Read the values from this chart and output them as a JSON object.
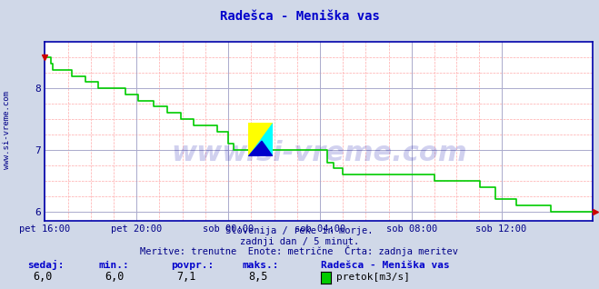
{
  "title": "Radešca - Meniška vas",
  "title_color": "#0000cc",
  "bg_color": "#d0d8e8",
  "plot_bg_color": "#ffffff",
  "grid_color_major": "#aaaacc",
  "grid_color_minor": "#ffaaaa",
  "line_color": "#00cc00",
  "line_width": 1.2,
  "ylim": [
    5.85,
    8.75
  ],
  "yticks": [
    6,
    7,
    8
  ],
  "tick_color": "#000088",
  "watermark": "www.si-vreme.com",
  "watermark_color": "#0000aa",
  "left_label": "www.si-vreme.com",
  "subtitle1": "Slovenija / reke in morje.",
  "subtitle2": "zadnji dan / 5 minut.",
  "subtitle3": "Meritve: trenutne  Enote: metrične  Črta: zadnja meritev",
  "subtitle_color": "#000088",
  "footer_labels": [
    "sedaj:",
    "min.:",
    "povpr.:",
    "maks.:"
  ],
  "footer_values": [
    "6,0",
    "6,0",
    "7,1",
    "8,5"
  ],
  "footer_label_color": "#0000cc",
  "footer_value_color": "#000000",
  "legend_label": "pretok[m3/s]",
  "legend_color": "#00cc00",
  "station_name": "Radešca - Meniška vas",
  "x_tick_labels": [
    "pet 16:00",
    "pet 20:00",
    "sob 00:00",
    "sob 04:00",
    "sob 08:00",
    "sob 12:00"
  ],
  "x_tick_positions": [
    0,
    48,
    96,
    144,
    192,
    239
  ],
  "n_points": 288,
  "data_y": [
    8.5,
    8.5,
    8.5,
    8.4,
    8.3,
    8.3,
    8.3,
    8.3,
    8.3,
    8.3,
    8.3,
    8.3,
    8.3,
    8.3,
    8.2,
    8.2,
    8.2,
    8.2,
    8.2,
    8.2,
    8.2,
    8.1,
    8.1,
    8.1,
    8.1,
    8.1,
    8.1,
    8.1,
    8.0,
    8.0,
    8.0,
    8.0,
    8.0,
    8.0,
    8.0,
    8.0,
    8.0,
    8.0,
    8.0,
    8.0,
    8.0,
    8.0,
    7.9,
    7.9,
    7.9,
    7.9,
    7.9,
    7.9,
    7.9,
    7.8,
    7.8,
    7.8,
    7.8,
    7.8,
    7.8,
    7.8,
    7.8,
    7.7,
    7.7,
    7.7,
    7.7,
    7.7,
    7.7,
    7.7,
    7.6,
    7.6,
    7.6,
    7.6,
    7.6,
    7.6,
    7.6,
    7.5,
    7.5,
    7.5,
    7.5,
    7.5,
    7.5,
    7.5,
    7.4,
    7.4,
    7.4,
    7.4,
    7.4,
    7.4,
    7.4,
    7.4,
    7.4,
    7.4,
    7.4,
    7.4,
    7.3,
    7.3,
    7.3,
    7.3,
    7.3,
    7.3,
    7.1,
    7.1,
    7.1,
    7.0,
    7.0,
    7.0,
    7.0,
    7.0,
    7.0,
    7.0,
    7.0,
    7.0,
    7.0,
    7.0,
    7.0,
    7.0,
    7.0,
    7.0,
    7.0,
    7.0,
    7.0,
    7.0,
    7.0,
    7.0,
    7.0,
    7.0,
    7.0,
    7.0,
    7.0,
    7.0,
    7.0,
    7.0,
    7.0,
    7.0,
    7.0,
    7.0,
    7.0,
    7.0,
    7.0,
    7.0,
    7.0,
    7.0,
    7.0,
    7.0,
    7.0,
    7.0,
    7.0,
    7.0,
    7.0,
    7.0,
    7.0,
    7.0,
    6.8,
    6.8,
    6.8,
    6.7,
    6.7,
    6.7,
    6.7,
    6.7,
    6.6,
    6.6,
    6.6,
    6.6,
    6.6,
    6.6,
    6.6,
    6.6,
    6.6,
    6.6,
    6.6,
    6.6,
    6.6,
    6.6,
    6.6,
    6.6,
    6.6,
    6.6,
    6.6,
    6.6,
    6.6,
    6.6,
    6.6,
    6.6,
    6.6,
    6.6,
    6.6,
    6.6,
    6.6,
    6.6,
    6.6,
    6.6,
    6.6,
    6.6,
    6.6,
    6.6,
    6.6,
    6.6,
    6.6,
    6.6,
    6.6,
    6.6,
    6.6,
    6.6,
    6.6,
    6.6,
    6.6,
    6.6,
    6.5,
    6.5,
    6.5,
    6.5,
    6.5,
    6.5,
    6.5,
    6.5,
    6.5,
    6.5,
    6.5,
    6.5,
    6.5,
    6.5,
    6.5,
    6.5,
    6.5,
    6.5,
    6.5,
    6.5,
    6.5,
    6.5,
    6.5,
    6.5,
    6.4,
    6.4,
    6.4,
    6.4,
    6.4,
    6.4,
    6.4,
    6.4,
    6.2,
    6.2,
    6.2,
    6.2,
    6.2,
    6.2,
    6.2,
    6.2,
    6.2,
    6.2,
    6.2,
    6.1,
    6.1,
    6.1,
    6.1,
    6.1,
    6.1,
    6.1,
    6.1,
    6.1,
    6.1,
    6.1,
    6.1,
    6.1,
    6.1,
    6.1,
    6.1,
    6.1,
    6.1,
    6.0,
    6.0,
    6.0,
    6.0,
    6.0,
    6.0,
    6.0,
    6.0,
    6.0,
    6.0,
    6.0,
    6.0,
    6.0,
    6.0,
    6.0,
    6.0,
    6.0,
    6.0,
    6.0,
    6.0,
    6.0,
    6.0,
    6.0,
    6.0
  ]
}
